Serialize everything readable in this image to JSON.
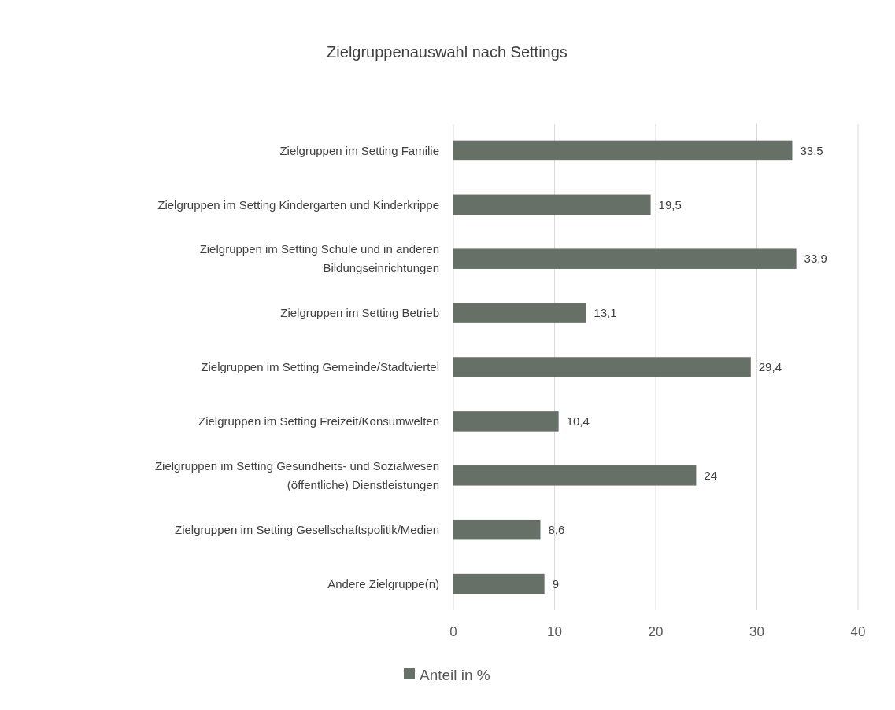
{
  "chart_data": {
    "type": "bar",
    "orientation": "horizontal",
    "title": "Zielgruppenauswahl nach Settings",
    "categories": [
      "Zielgruppen im Setting Familie",
      "Zielgruppen im Setting Kindergarten und Kinderkrippe",
      "Zielgruppen im Setting Schule und in anderen Bildungseinrichtungen",
      "Zielgruppen im Setting Betrieb",
      "Zielgruppen im Setting Gemeinde/Stadtviertel",
      "Zielgruppen im Setting Freizeit/Konsumwelten",
      "Zielgruppen im Setting Gesundheits- und Sozialwesen (öffentliche) Dienstleistungen",
      "Zielgruppen im Setting Gesellschaftspolitik/Medien",
      "Andere Zielgruppe(n)"
    ],
    "series": [
      {
        "name": "Anteil in %",
        "color": "#667067",
        "values": [
          33.5,
          19.5,
          33.9,
          13.1,
          29.4,
          10.4,
          24,
          8.6,
          9
        ],
        "value_labels": [
          "33,5",
          "19,5",
          "33,9",
          "13,1",
          "29,4",
          "10,4",
          "24",
          "8,6",
          "9"
        ]
      }
    ],
    "xlim": [
      0,
      40
    ],
    "xticks": [
      0,
      10,
      20,
      30,
      40
    ],
    "grid": "x",
    "legend": "bottom"
  }
}
